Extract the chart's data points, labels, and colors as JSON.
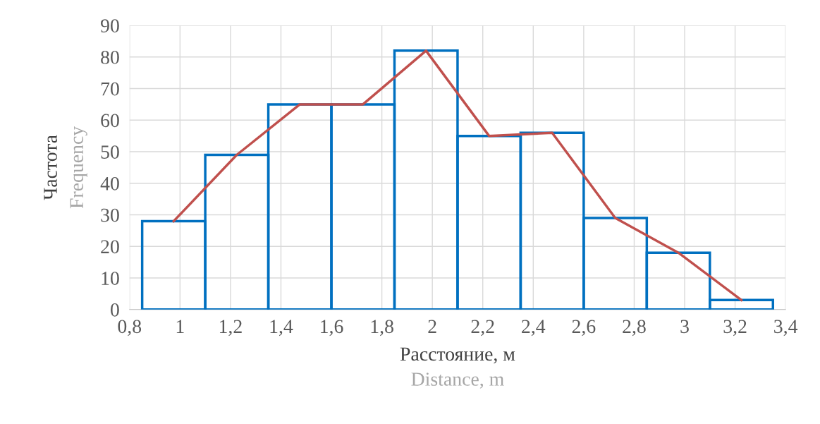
{
  "chart_data": {
    "type": "histogram",
    "xlabel": "Расстояние, м",
    "ylabel": "Частота",
    "annotations": [
      "Distance, m",
      "Frequency"
    ],
    "series": [
      {
        "color": "#0070c0",
        "bins": [
          0.85,
          1.1,
          1.35,
          1.6,
          1.85,
          2.1,
          2.35,
          2.6,
          2.85,
          3.1,
          3.35
        ],
        "values": [
          28,
          49,
          65,
          65,
          82,
          55,
          56,
          29,
          18,
          3
        ]
      },
      {
        "type": "line",
        "color": "#c0504d",
        "x": [
          0.975,
          1.225,
          1.475,
          1.725,
          1.975,
          2.225,
          2.475,
          2.725,
          2.975,
          3.225
        ],
        "values": [
          28,
          49,
          65,
          65,
          82,
          55,
          56,
          29,
          18,
          3
        ]
      }
    ],
    "xlim": [
      0.8,
      3.4
    ],
    "xticks": [
      {
        "value": 0.8,
        "label": "0,8"
      },
      1,
      {
        "value": 1.2,
        "label": "1,2"
      },
      {
        "value": 1.4,
        "label": "1,4"
      },
      {
        "value": 1.6,
        "label": "1,6"
      },
      {
        "value": 1.8,
        "label": "1,8"
      },
      2,
      {
        "value": 2.2,
        "label": "2,2"
      },
      {
        "value": 2.4,
        "label": "2,4"
      },
      {
        "value": 2.6,
        "label": "2,6"
      },
      {
        "value": 2.8,
        "label": "2,8"
      },
      3,
      {
        "value": 3.2,
        "label": "3,2"
      },
      {
        "value": 3.4,
        "label": "3,4"
      }
    ],
    "ylim": [
      0,
      90
    ],
    "yticks": [
      0,
      10,
      20,
      30,
      40,
      50,
      60,
      70,
      80,
      90
    ],
    "grid": true,
    "legend": false
  }
}
